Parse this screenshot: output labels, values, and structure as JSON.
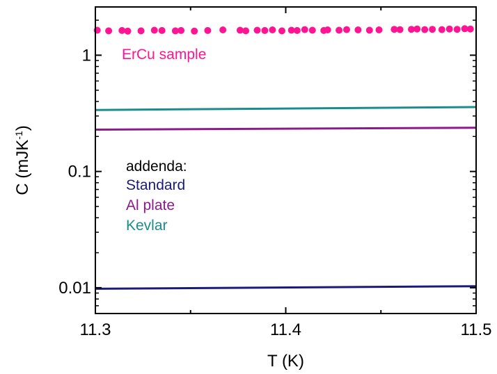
{
  "chart_data": {
    "type": "scatter",
    "title": "",
    "xlabel": "T (K)",
    "ylabel_main": "C (mJK",
    "ylabel_exp": "-1",
    "ylabel_close": ")",
    "xlim": [
      11.3,
      11.5
    ],
    "ylim": [
      0.006,
      2.6
    ],
    "yscale": "log",
    "grid": false,
    "x_ticks": [
      11.3,
      11.4,
      11.5
    ],
    "x_tick_labels": [
      "11.3",
      "11.4",
      "11.5"
    ],
    "y_ticks": [
      0.01,
      0.1,
      1
    ],
    "y_tick_labels": [
      "0.01",
      "0.1",
      "1"
    ],
    "series": [
      {
        "name": "ErCu sample",
        "type": "scatter",
        "color": "#ff1493",
        "x": [
          11.301,
          11.307,
          11.314,
          11.317,
          11.324,
          11.331,
          11.335,
          11.342,
          11.345,
          11.352,
          11.359,
          11.367,
          11.376,
          11.379,
          11.385,
          11.389,
          11.393,
          11.398,
          11.403,
          11.406,
          11.41,
          11.414,
          11.42,
          11.422,
          11.428,
          11.432,
          11.438,
          11.444,
          11.449,
          11.457,
          11.46,
          11.466,
          11.469,
          11.473,
          11.477,
          11.482,
          11.486,
          11.49,
          11.494,
          11.497
        ],
        "values": [
          1.64,
          1.62,
          1.63,
          1.61,
          1.62,
          1.64,
          1.63,
          1.62,
          1.63,
          1.61,
          1.63,
          1.65,
          1.64,
          1.62,
          1.64,
          1.63,
          1.65,
          1.62,
          1.64,
          1.63,
          1.66,
          1.64,
          1.63,
          1.65,
          1.64,
          1.66,
          1.65,
          1.64,
          1.65,
          1.67,
          1.66,
          1.67,
          1.68,
          1.66,
          1.67,
          1.66,
          1.68,
          1.67,
          1.69,
          1.68
        ]
      },
      {
        "name": "Kevlar",
        "type": "line",
        "color": "#1a8c8c",
        "x": [
          11.3,
          11.5
        ],
        "values": [
          0.338,
          0.358
        ]
      },
      {
        "name": "Al plate",
        "type": "line",
        "color": "#8b1a8b",
        "x": [
          11.3,
          11.5
        ],
        "values": [
          0.229,
          0.238
        ]
      },
      {
        "name": "Standard",
        "type": "line",
        "color": "#1a1a7a",
        "x": [
          11.3,
          11.5
        ],
        "values": [
          0.0098,
          0.0103
        ]
      }
    ],
    "annotations": {
      "sample_label": "ErCu sample",
      "addenda_header": "addenda:",
      "addenda_items": [
        {
          "label": "Standard",
          "color": "#1a1a7a"
        },
        {
          "label": "Al plate",
          "color": "#8b1a8b"
        },
        {
          "label": "Kevlar",
          "color": "#1a8c8c"
        }
      ]
    }
  }
}
